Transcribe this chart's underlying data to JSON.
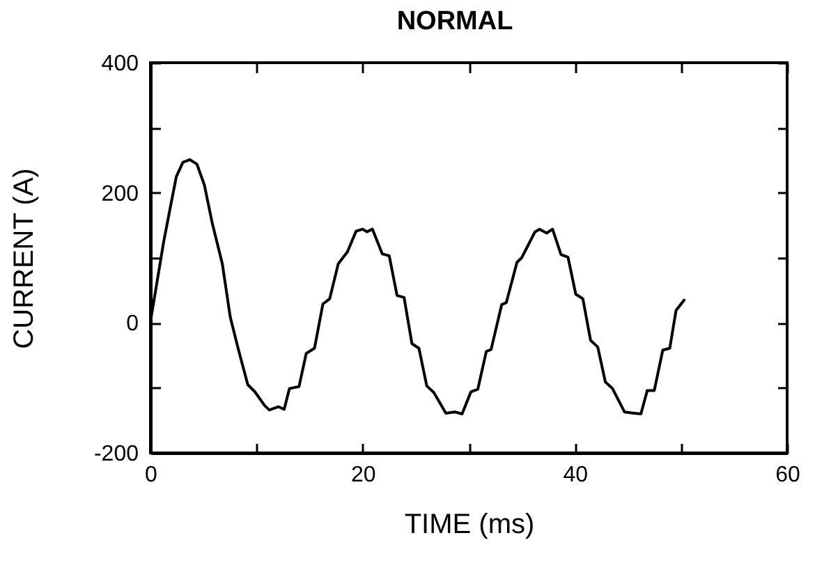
{
  "chart_data": {
    "type": "line",
    "title": "NORMAL",
    "xlabel": "TIME (ms)",
    "ylabel": "CURRENT (A)",
    "x": [
      0,
      0.66,
      1.25,
      1.84,
      2.44,
      3.06,
      3.72,
      4.38,
      5.08,
      5.8,
      6.77,
      7.52,
      8.24,
      9.17,
      9.84,
      10.75,
      11.2,
      12.07,
      12.6,
      13.1,
      14.0,
      14.68,
      15.46,
      16.25,
      16.89,
      17.7,
      18.56,
      19.38,
      20.0,
      20.4,
      20.92,
      21.85,
      22.5,
      23.24,
      23.9,
      24.64,
      25.3,
      26.04,
      26.7,
      27.84,
      28.7,
      29.37,
      30.2,
      30.85,
      31.65,
      32.1,
      33.1,
      33.53,
      34.54,
      34.98,
      36.24,
      36.67,
      37.34,
      37.89,
      38.69,
      39.35,
      40.08,
      40.75,
      41.48,
      42.15,
      42.87,
      43.54,
      44.67,
      45.56,
      46.22,
      46.82,
      47.48,
      48.28,
      48.94,
      49.53,
      50.29
    ],
    "series": [
      {
        "color": "#000000",
        "values": [
          2,
          67,
          125,
          175,
          225,
          247,
          251,
          244,
          212,
          155,
          91,
          9,
          -38,
          -95,
          -106,
          -127,
          -134,
          -129,
          -133,
          -101,
          -98,
          -47,
          -39,
          29,
          37,
          91,
          109,
          141,
          144,
          140,
          144,
          106,
          103,
          42,
          39,
          -32,
          -39,
          -97,
          -107,
          -139,
          -137,
          -140,
          -106,
          -102,
          -44,
          -41,
          28,
          31,
          93,
          100,
          140,
          144,
          138,
          144,
          105,
          101,
          44,
          37,
          -27,
          -37,
          -91,
          -101,
          -137,
          -139,
          -140,
          -104,
          -104,
          -42,
          -39,
          19,
          35
        ]
      }
    ],
    "xlim": [
      0,
      60
    ],
    "xticks": [
      0,
      {
        "value": 10,
        "label": null
      },
      20,
      {
        "value": 30,
        "label": null
      },
      40,
      {
        "value": 50,
        "label": null
      },
      60
    ],
    "ylim": [
      -200,
      400
    ],
    "yticks": [
      -200,
      {
        "value": -100,
        "label": null
      },
      0,
      {
        "value": 100,
        "label": null
      },
      200,
      {
        "value": 300,
        "label": null
      },
      400
    ],
    "grid": false,
    "marker": "none",
    "line_style": "solid"
  }
}
